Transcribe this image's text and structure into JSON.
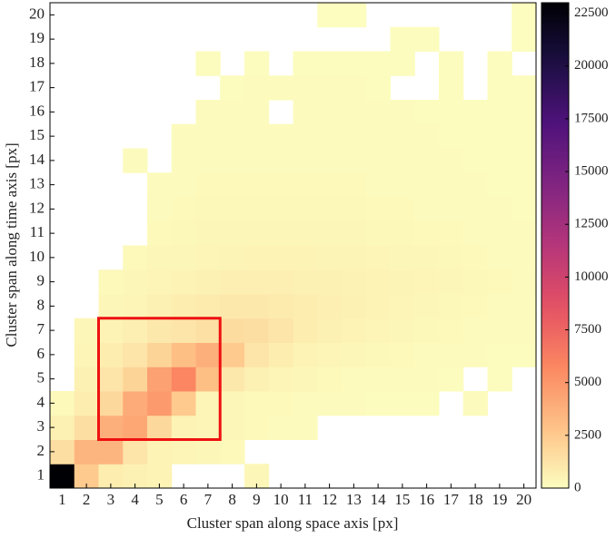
{
  "chart_data": {
    "type": "heatmap",
    "xlabel": "Cluster span along space axis [px]",
    "ylabel": "Cluster span along time axis [px]",
    "x": [
      1,
      2,
      3,
      4,
      5,
      6,
      7,
      8,
      9,
      10,
      11,
      12,
      13,
      14,
      15,
      16,
      17,
      18,
      19,
      20
    ],
    "y": [
      1,
      2,
      3,
      4,
      5,
      6,
      7,
      8,
      9,
      10,
      11,
      12,
      13,
      14,
      15,
      16,
      17,
      18,
      19,
      20
    ],
    "z": [
      [
        23000,
        2500,
        800,
        600,
        500,
        null,
        null,
        null,
        300,
        null,
        null,
        null,
        null,
        null,
        null,
        null,
        null,
        null,
        null,
        null
      ],
      [
        1500,
        3500,
        3500,
        1200,
        500,
        400,
        300,
        200,
        null,
        null,
        null,
        null,
        null,
        null,
        null,
        null,
        null,
        null,
        null,
        null
      ],
      [
        600,
        1500,
        3800,
        4200,
        1800,
        500,
        400,
        300,
        200,
        150,
        100,
        null,
        null,
        null,
        null,
        null,
        null,
        null,
        null,
        null
      ],
      [
        200,
        800,
        1800,
        4000,
        4800,
        2500,
        400,
        300,
        200,
        200,
        150,
        100,
        80,
        60,
        50,
        50,
        null,
        100,
        null,
        null
      ],
      [
        null,
        600,
        1200,
        2000,
        4500,
        5800,
        3000,
        1000,
        600,
        400,
        300,
        200,
        150,
        100,
        100,
        80,
        60,
        null,
        50,
        null
      ],
      [
        null,
        400,
        800,
        1200,
        2000,
        3000,
        3800,
        2500,
        1200,
        800,
        500,
        400,
        300,
        250,
        200,
        150,
        100,
        80,
        60,
        50
      ],
      [
        null,
        300,
        500,
        700,
        1000,
        1200,
        1400,
        1600,
        1500,
        1200,
        800,
        600,
        500,
        400,
        300,
        250,
        200,
        150,
        100,
        80
      ],
      [
        null,
        null,
        300,
        400,
        600,
        800,
        900,
        1000,
        1000,
        900,
        800,
        700,
        600,
        500,
        400,
        300,
        250,
        200,
        150,
        100
      ],
      [
        null,
        null,
        200,
        300,
        400,
        500,
        600,
        700,
        700,
        700,
        650,
        600,
        550,
        500,
        450,
        400,
        300,
        250,
        200,
        150
      ],
      [
        null,
        null,
        null,
        200,
        300,
        350,
        400,
        450,
        500,
        500,
        500,
        450,
        450,
        400,
        350,
        300,
        250,
        200,
        150,
        100
      ],
      [
        null,
        null,
        null,
        null,
        200,
        250,
        300,
        300,
        300,
        300,
        300,
        300,
        300,
        250,
        250,
        200,
        200,
        150,
        100,
        80
      ],
      [
        null,
        null,
        null,
        null,
        150,
        200,
        250,
        250,
        250,
        250,
        250,
        250,
        250,
        200,
        200,
        150,
        150,
        100,
        80,
        60
      ],
      [
        null,
        null,
        null,
        null,
        100,
        150,
        200,
        200,
        200,
        200,
        200,
        200,
        200,
        150,
        150,
        120,
        100,
        80,
        60,
        50
      ],
      [
        null,
        null,
        null,
        80,
        null,
        100,
        150,
        150,
        150,
        150,
        150,
        150,
        150,
        120,
        120,
        100,
        80,
        60,
        50,
        40
      ],
      [
        null,
        null,
        null,
        null,
        null,
        80,
        100,
        120,
        120,
        120,
        120,
        120,
        120,
        100,
        100,
        80,
        60,
        50,
        40,
        30
      ],
      [
        null,
        null,
        null,
        null,
        null,
        null,
        80,
        100,
        100,
        null,
        100,
        100,
        100,
        80,
        80,
        60,
        50,
        40,
        30,
        30
      ],
      [
        null,
        null,
        null,
        null,
        null,
        null,
        null,
        60,
        80,
        80,
        80,
        80,
        80,
        60,
        null,
        null,
        40,
        null,
        30,
        30
      ],
      [
        null,
        null,
        null,
        null,
        null,
        null,
        40,
        null,
        50,
        null,
        50,
        50,
        50,
        40,
        40,
        null,
        30,
        null,
        30,
        null
      ],
      [
        null,
        null,
        null,
        null,
        null,
        null,
        null,
        null,
        null,
        null,
        null,
        null,
        null,
        null,
        30,
        30,
        null,
        null,
        null,
        20
      ],
      [
        null,
        null,
        null,
        null,
        null,
        null,
        null,
        null,
        null,
        null,
        null,
        20,
        20,
        null,
        null,
        null,
        null,
        null,
        null,
        20
      ]
    ],
    "colormap": "magma_r",
    "clim": [
      0,
      23000
    ],
    "cticks": [
      0,
      2500,
      5000,
      7500,
      10000,
      12500,
      15000,
      17500,
      20000,
      22500
    ],
    "highlight": {
      "x": [
        2.5,
        7.5
      ],
      "y": [
        2.5,
        7.5
      ],
      "color": "#ee1111"
    }
  }
}
